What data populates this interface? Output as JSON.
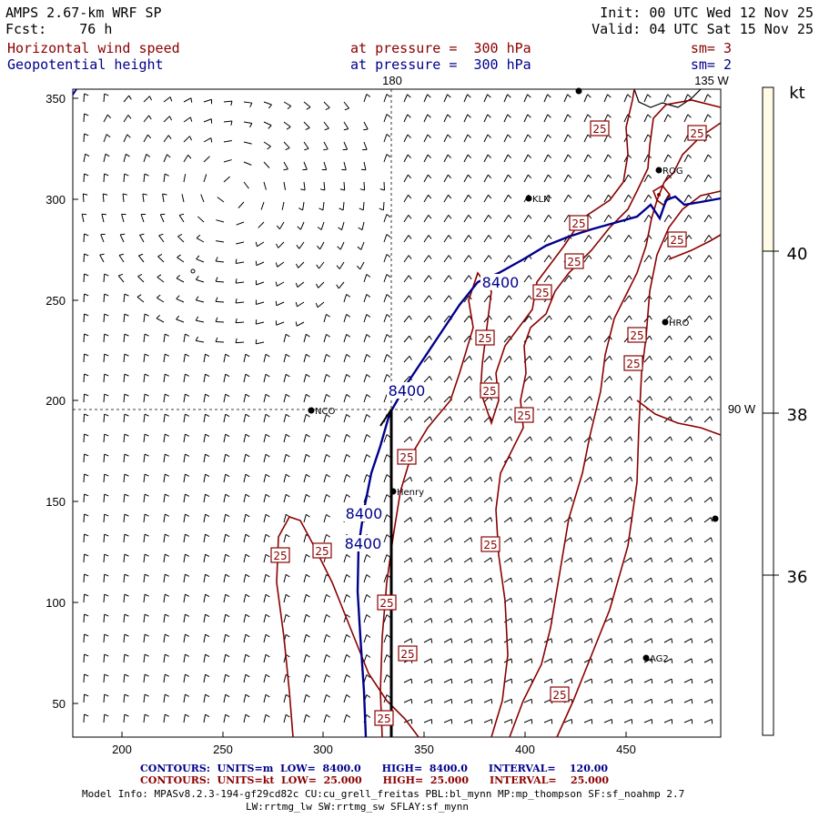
{
  "header": {
    "model": "AMPS 2.67-km WRF SP",
    "fcst_label": "Fcst:",
    "fcst_value": "76 h",
    "init": "Init: 00 UTC Wed 12 Nov 25",
    "valid": "Valid: 04 UTC Sat 15 Nov 25",
    "field1_name": "Horizontal wind speed",
    "field1_level": "at pressure =  300 hPa",
    "field1_sm": "sm= 3",
    "field2_name": "Geopotential height",
    "field2_level": "at pressure =  300 hPa",
    "field2_sm": "sm= 2"
  },
  "map": {
    "x_ticks": [
      "200",
      "250",
      "300",
      "350",
      "400",
      "450"
    ],
    "y_ticks": [
      "350",
      "300",
      "250",
      "200",
      "150",
      "100",
      "50"
    ],
    "meridian_labels": {
      "top_180": "180",
      "top_135w": "135 W",
      "right_90w": "90 W"
    },
    "stations": [
      {
        "name": "ROG"
      },
      {
        "name": "KLN"
      },
      {
        "name": "HRO"
      },
      {
        "name": "NCO"
      },
      {
        "name": "Henry"
      },
      {
        "name": "AG2"
      }
    ],
    "contour_labels_red": "25",
    "contour_labels_blue": "8400"
  },
  "colorbar": {
    "unit": "kt",
    "ticks": [
      "40",
      "38",
      "36"
    ],
    "fill_color": "#fffbe6"
  },
  "footer": {
    "blue_contours": "CONTOURS:  UNITS=m  LOW=  8400.0      HIGH=  8400.0      INTERVAL=    120.00",
    "red_contours": "CONTOURS:  UNITS=kt  LOW=  25.000      HIGH=  25.000      INTERVAL=    25.000",
    "model_info_1": "Model Info: MPASv8.2.3-194-gf29cd82c CU:cu_grell_freitas PBL:bl_mynn MP:mp_thompson SF:sf_noahmp 2.7",
    "model_info_2": "LW:rrtmg_lw SW:rrtmg_sw SFLAY:sf_mynn"
  },
  "colors": {
    "contour_red": "#8b0000",
    "contour_blue": "#00008b"
  }
}
